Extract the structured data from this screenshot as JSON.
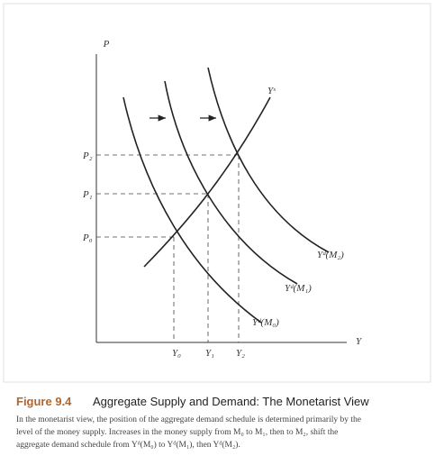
{
  "axes": {
    "y_label": "P",
    "x_label": "Y"
  },
  "price_ticks": [
    "P₂",
    "P₁",
    "P₀"
  ],
  "output_ticks": [
    "Y₀",
    "Y₁",
    "Y₂"
  ],
  "curves": {
    "supply": "Yˢ",
    "demand_m2": "Yᵈ(M₂)",
    "demand_m1": "Yᵈ(M₁)",
    "demand_m0": "Yᵈ(M₀)"
  },
  "caption": {
    "figure": "Figure 9.4",
    "title": "Aggregate Supply and Demand: The Monetarist View",
    "lines": [
      "In the monetarist view, the position of the aggregate demand schedule is determined primarily by the",
      "level of the money supply. Increases in the money supply from M₀ to M₁, then to M₂, shift the",
      "aggregate demand schedule from Yᵈ(M₀) to Yᵈ(M₁), then Yᵈ(M₂)."
    ]
  }
}
